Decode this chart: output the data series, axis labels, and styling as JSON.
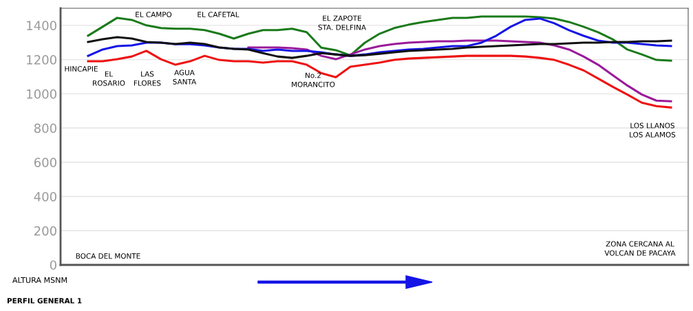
{
  "chart_data": {
    "type": "line",
    "title": "PERFIL GENERAL 1",
    "ylabel": "ALTURA MSNM",
    "categories": [
      null,
      null,
      null,
      null,
      null,
      null,
      null,
      null,
      null,
      null,
      null,
      null,
      null,
      null,
      null,
      null,
      null,
      null,
      null,
      null,
      null,
      null,
      null,
      null,
      null,
      null,
      null,
      null,
      null,
      null,
      null,
      null,
      null,
      null,
      null,
      null,
      null,
      null,
      null,
      null,
      null
    ],
    "series": [
      {
        "color": "#1a7a1a",
        "values": [
          1340,
          1392,
          1444,
          1432,
          1400,
          1384,
          1380,
          1380,
          1372,
          1351,
          1323,
          1351,
          1372,
          1372,
          1380,
          1360,
          1270,
          1255,
          1225,
          1299,
          1351,
          1384,
          1404,
          1420,
          1432,
          1444,
          1444,
          1452,
          1452,
          1452,
          1452,
          1448,
          1440,
          1420,
          1392,
          1360,
          1319,
          1259,
          1230,
          1198,
          1194
        ]
      },
      {
        "color": "#9a1a9a",
        "values": [
          null,
          null,
          null,
          null,
          null,
          null,
          null,
          null,
          null,
          null,
          null,
          1271,
          1271,
          1271,
          1267,
          1259,
          1222,
          1202,
          1230,
          1259,
          1279,
          1291,
          1299,
          1303,
          1307,
          1307,
          1311,
          1311,
          1311,
          1307,
          1303,
          1299,
          1283,
          1259,
          1218,
          1170,
          1109,
          1049,
          996,
          960,
          956
        ]
      },
      {
        "color": "#1414e6",
        "values": [
          1222,
          1259,
          1279,
          1283,
          1299,
          1299,
          1290,
          1290,
          1283,
          1271,
          1263,
          1263,
          1251,
          1259,
          1251,
          1251,
          1243,
          1230,
          1222,
          1230,
          1243,
          1251,
          1259,
          1263,
          1271,
          1279,
          1279,
          1299,
          1339,
          1392,
          1432,
          1440,
          1412,
          1372,
          1339,
          1311,
          1299,
          1299,
          1291,
          1283,
          1279
        ]
      },
      {
        "color": "#ee1111",
        "values": [
          1190,
          1190,
          1202,
          1218,
          1251,
          1202,
          1170,
          1190,
          1222,
          1198,
          1190,
          1190,
          1182,
          1190,
          1190,
          1170,
          1121,
          1097,
          1158,
          1170,
          1182,
          1198,
          1206,
          1210,
          1214,
          1218,
          1222,
          1222,
          1222,
          1222,
          1218,
          1210,
          1198,
          1170,
          1137,
          1089,
          1041,
          996,
          948,
          928,
          920
        ]
      },
      {
        "color": "#111111",
        "values": [
          1303,
          1319,
          1331,
          1323,
          1303,
          1299,
          1291,
          1299,
          1291,
          1271,
          1263,
          1259,
          1238,
          1218,
          1210,
          1222,
          1238,
          1230,
          1222,
          1226,
          1234,
          1243,
          1251,
          1255,
          1259,
          1263,
          1271,
          1275,
          1279,
          1283,
          1287,
          1291,
          1291,
          1295,
          1299,
          1299,
          1303,
          1303,
          1307,
          1307,
          1311
        ]
      }
    ],
    "ylim": [
      0,
      1500
    ],
    "yticks": [
      0,
      200,
      400,
      600,
      800,
      1000,
      1200,
      1400
    ],
    "grid": "y",
    "tick_labels": "y",
    "marker": "none",
    "line_style": "solid",
    "annotations": [
      "HINCAPIE",
      "EL\nROSARIO",
      "LAS\nFLORES",
      "EL CAMPO",
      "AGUA\nSANTA",
      "EL CAFETAL",
      "EL ZAPOTE\nSTA. DELFINA",
      "No.2\nMORANCITO",
      "LOS LLANOS\nLOS ALAMOS",
      "BOCA DEL MONTE",
      "ZONA CERCANA AL\nVOLCAN DE PACAYA"
    ]
  }
}
